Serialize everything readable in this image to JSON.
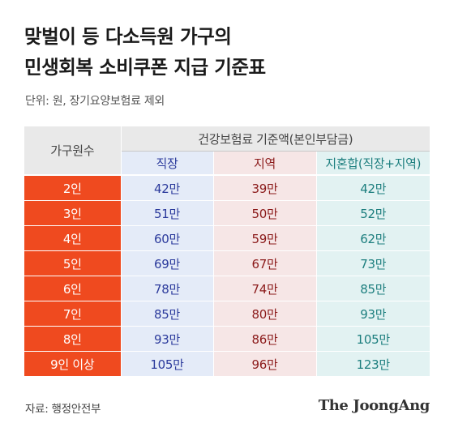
{
  "title_line1": "맞벌이 등 다소득원 가구의",
  "title_line2": "민생회복 소비쿠폰 지급 기준표",
  "subtitle": "단위: 원, 장기요양보험료 제외",
  "table": {
    "col_household": "가구원수",
    "col_group": "건강보험료 기준액(본인부담금)",
    "col_workplace": "직장",
    "col_regional": "지역",
    "col_mixed": "지혼합(직장+지역)",
    "rows": [
      {
        "household": "2인",
        "workplace": "42만",
        "regional": "39만",
        "mixed": "42만"
      },
      {
        "household": "3인",
        "workplace": "51만",
        "regional": "50만",
        "mixed": "52만"
      },
      {
        "household": "4인",
        "workplace": "60만",
        "regional": "59만",
        "mixed": "62만"
      },
      {
        "household": "5인",
        "workplace": "69만",
        "regional": "67만",
        "mixed": "73만"
      },
      {
        "household": "6인",
        "workplace": "78만",
        "regional": "74만",
        "mixed": "85만"
      },
      {
        "household": "7인",
        "workplace": "85만",
        "regional": "80만",
        "mixed": "93만"
      },
      {
        "household": "8인",
        "workplace": "93만",
        "regional": "86만",
        "mixed": "105만"
      },
      {
        "household": "9인 이상",
        "workplace": "105만",
        "regional": "96만",
        "mixed": "123만"
      }
    ]
  },
  "source": "자료: 행정안전부",
  "logo": "The JoongAng",
  "colors": {
    "household_cell": "#ef4a1f",
    "workplace_text": "#2b3a9c",
    "regional_text": "#8b1a1a",
    "mixed_text": "#1c7e7e"
  }
}
